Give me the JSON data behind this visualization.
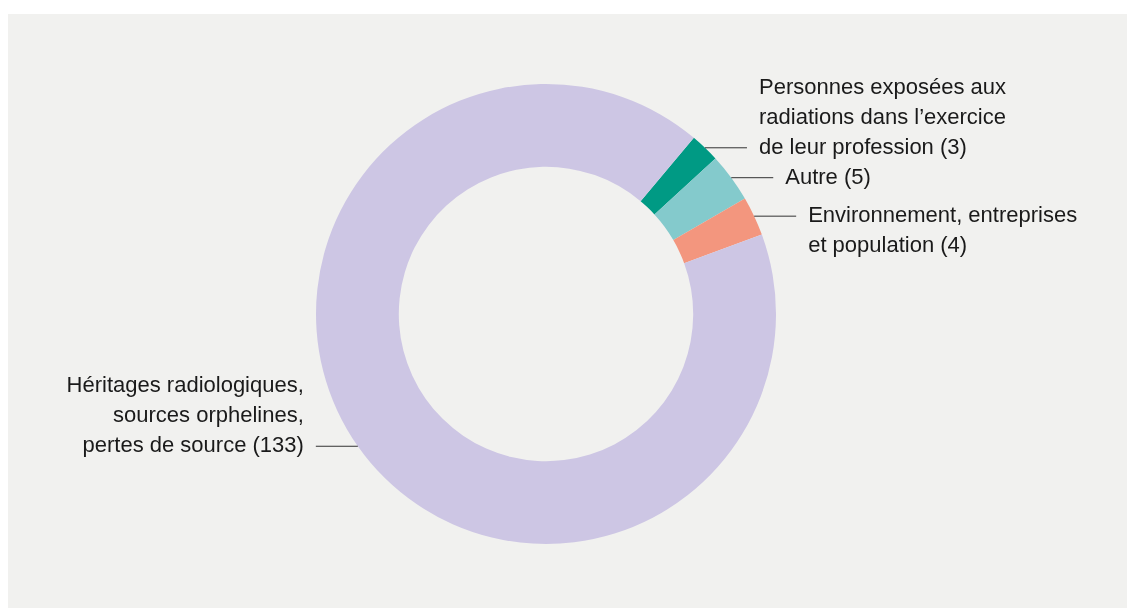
{
  "chart_data": {
    "type": "donut",
    "categories": [
      "Personnes exposées aux\nradiations dans l’exercice\nde leur profession",
      "Autre",
      "Environnement, entreprises\net population",
      "Héritages radiologiques,\nsources orphelines,\npertes de source"
    ],
    "values": [
      3,
      5,
      4,
      133
    ],
    "colors": [
      "#009a84",
      "#84cacc",
      "#f3967e",
      "#cdc6e4"
    ],
    "value_labels": [
      "(3)",
      "(5)",
      "(4)",
      "(133)"
    ],
    "legend": false
  }
}
